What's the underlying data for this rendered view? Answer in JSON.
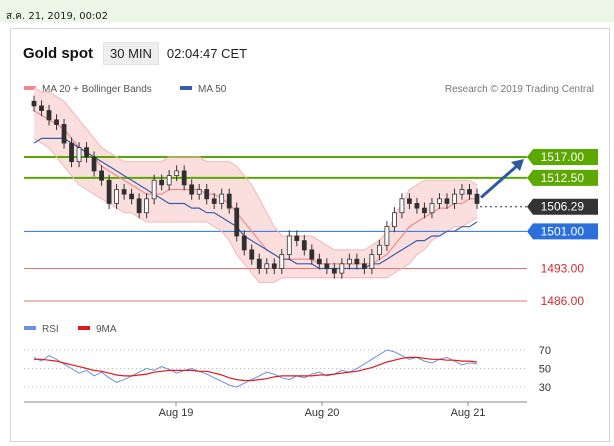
{
  "topbar": {
    "date_text": "ส.ค. 21, 2019, 00:02"
  },
  "header": {
    "instrument": "Gold spot",
    "interval": "30 MIN",
    "time": "02:04:47 CET"
  },
  "colors": {
    "ma20": "#f08a8a",
    "ma50": "#3a5ea8",
    "band_fill": "#fbdcdc",
    "resistance": "#5aa800",
    "support": "#e57373",
    "pivot": "#2b6fdc",
    "last_price": "#333333",
    "arrow": "#2c5aa0",
    "rsi": "#6d8fe0",
    "rsi_ma": "#e01b1b",
    "candle_up": "#2f2f2f",
    "candle_down": "#c0392b"
  },
  "chart_data": [
    {
      "type": "line",
      "title": "Gold spot",
      "credit": "Research © 2019 Trading Central",
      "legend": [
        {
          "name": "MA 20 + Bollinger Bands",
          "color": "#f08a8a"
        },
        {
          "name": "MA 50",
          "color": "#3a5ea8"
        }
      ],
      "x_ticks": [
        "Aug 19",
        "Aug 20",
        "Aug 21"
      ],
      "ylim": [
        1480,
        1532
      ],
      "series": [
        {
          "name": "Price",
          "values": [
            1528,
            1527,
            1525,
            1524,
            1520,
            1516,
            1519,
            1517,
            1514,
            1512,
            1507,
            1510,
            1509,
            1508,
            1505,
            1508,
            1512,
            1511,
            1513,
            1514,
            1511,
            1509,
            1510,
            1508,
            1507,
            1509,
            1506,
            1500,
            1497,
            1495,
            1493,
            1494,
            1493,
            1496,
            1500,
            1499,
            1497,
            1495,
            1494,
            1493,
            1492,
            1494,
            1495,
            1494,
            1493,
            1496,
            1498,
            1502,
            1505,
            1508,
            1507,
            1506,
            1505,
            1507,
            1508,
            1507,
            1509,
            1510,
            1509,
            1507
          ]
        },
        {
          "name": "MA 20",
          "values": [
            1527,
            1526,
            1525,
            1524,
            1523,
            1521,
            1519,
            1518,
            1517,
            1515,
            1514,
            1513,
            1512,
            1511,
            1510,
            1509,
            1509,
            1509,
            1510,
            1510,
            1510,
            1510,
            1510,
            1509,
            1509,
            1508,
            1507,
            1505,
            1503,
            1501,
            1499,
            1497,
            1496,
            1495,
            1495,
            1495,
            1495,
            1495,
            1494,
            1494,
            1494,
            1494,
            1494,
            1494,
            1494,
            1494,
            1495,
            1496,
            1498,
            1500,
            1502,
            1503,
            1504,
            1505,
            1506,
            1506,
            1507,
            1507,
            1508,
            1508
          ]
        },
        {
          "name": "Bollinger Upper",
          "values": [
            1532,
            1531,
            1531,
            1530,
            1529,
            1527,
            1525,
            1523,
            1521,
            1519,
            1518,
            1517,
            1516,
            1516,
            1516,
            1516,
            1516,
            1516,
            1517,
            1517,
            1517,
            1517,
            1517,
            1516,
            1516,
            1516,
            1516,
            1515,
            1513,
            1511,
            1508,
            1505,
            1502,
            1500,
            1500,
            1500,
            1500,
            1500,
            1499,
            1498,
            1497,
            1497,
            1497,
            1497,
            1497,
            1498,
            1499,
            1501,
            1504,
            1507,
            1510,
            1511,
            1512,
            1512,
            1512,
            1512,
            1512,
            1512,
            1512,
            1511
          ]
        },
        {
          "name": "Bollinger Lower",
          "values": [
            1521,
            1520,
            1519,
            1517,
            1515,
            1513,
            1511,
            1510,
            1509,
            1508,
            1507,
            1506,
            1505,
            1505,
            1504,
            1503,
            1503,
            1503,
            1503,
            1503,
            1503,
            1503,
            1503,
            1503,
            1502,
            1501,
            1499,
            1496,
            1494,
            1492,
            1490,
            1490,
            1490,
            1491,
            1491,
            1491,
            1491,
            1491,
            1491,
            1491,
            1491,
            1491,
            1491,
            1491,
            1491,
            1491,
            1491,
            1491,
            1492,
            1493,
            1494,
            1496,
            1497,
            1499,
            1500,
            1501,
            1502,
            1502,
            1503,
            1504
          ]
        },
        {
          "name": "MA 50",
          "values": [
            1520,
            1521,
            1521,
            1521,
            1521,
            1520,
            1519,
            1518,
            1517,
            1516,
            1515,
            1514,
            1513,
            1512,
            1511,
            1510,
            1509,
            1508,
            1507,
            1507,
            1507,
            1506,
            1506,
            1505,
            1505,
            1504,
            1503,
            1502,
            1500,
            1499,
            1498,
            1497,
            1496,
            1495,
            1495,
            1494,
            1494,
            1494,
            1493,
            1493,
            1493,
            1493,
            1493,
            1493,
            1493,
            1494,
            1494,
            1495,
            1496,
            1497,
            1498,
            1499,
            1499,
            1500,
            1500,
            1501,
            1501,
            1502,
            1502,
            1503
          ]
        }
      ],
      "levels": [
        {
          "value": 1517.0,
          "label": "1517.00",
          "kind": "resistance"
        },
        {
          "value": 1512.5,
          "label": "1512.50",
          "kind": "resistance"
        },
        {
          "value": 1506.29,
          "label": "1506.29",
          "kind": "last"
        },
        {
          "value": 1501.0,
          "label": "1501.00",
          "kind": "pivot"
        },
        {
          "value": 1493.0,
          "label": "1493.00",
          "kind": "support"
        },
        {
          "value": 1486.0,
          "label": "1486.00",
          "kind": "support"
        }
      ],
      "arrow_target": 1517.0
    },
    {
      "type": "line",
      "legend": [
        {
          "name": "RSI",
          "color": "#6d8fe0"
        },
        {
          "name": "9MA",
          "color": "#e01b1b"
        }
      ],
      "y_ticks": [
        "70",
        "50",
        "30"
      ],
      "ylim": [
        20,
        80
      ],
      "series": [
        {
          "name": "RSI",
          "values": [
            62,
            58,
            64,
            60,
            55,
            50,
            45,
            48,
            42,
            46,
            40,
            35,
            38,
            42,
            46,
            50,
            48,
            52,
            49,
            45,
            48,
            50,
            47,
            44,
            40,
            36,
            32,
            30,
            34,
            38,
            42,
            46,
            44,
            40,
            38,
            42,
            40,
            44,
            46,
            42,
            44,
            48,
            46,
            50,
            55,
            60,
            65,
            70,
            68,
            64,
            60,
            62,
            58,
            56,
            60,
            62,
            58,
            54,
            56,
            55
          ]
        },
        {
          "name": "9MA",
          "values": [
            60,
            60,
            59,
            58,
            56,
            54,
            52,
            50,
            48,
            47,
            45,
            43,
            42,
            42,
            43,
            44,
            46,
            47,
            48,
            48,
            48,
            48,
            47,
            47,
            45,
            43,
            40,
            38,
            37,
            37,
            38,
            39,
            41,
            42,
            42,
            42,
            42,
            42,
            43,
            43,
            44,
            45,
            46,
            47,
            49,
            51,
            54,
            57,
            59,
            61,
            62,
            62,
            61,
            60,
            60,
            59,
            59,
            58,
            58,
            57
          ]
        }
      ]
    }
  ]
}
